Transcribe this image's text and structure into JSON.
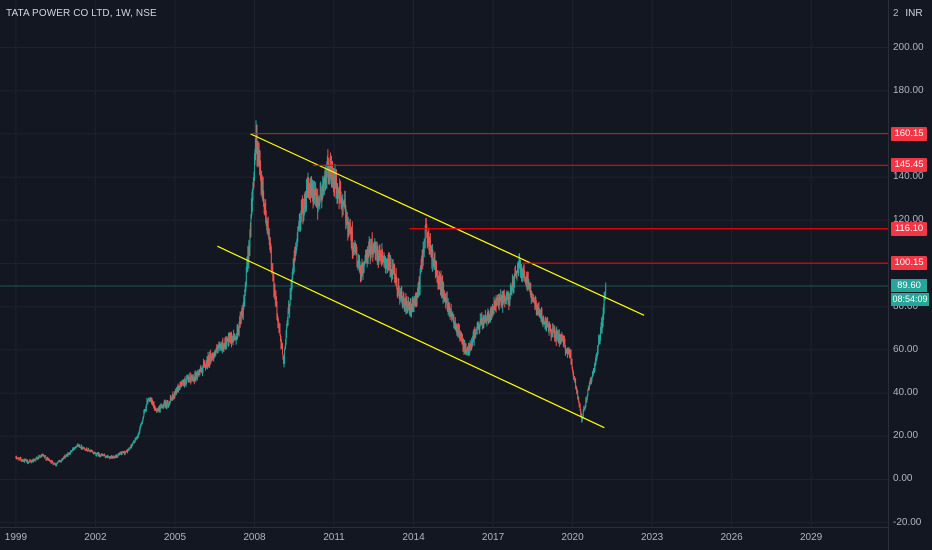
{
  "header": {
    "title": "TATA POWER CO LTD, 1W, NSE",
    "currency": "INR",
    "top_tick_partial": "2"
  },
  "colors": {
    "background": "#131722",
    "up_candle": "#26a69a",
    "down_candle": "#ef5350",
    "level_line": "#ff0000",
    "channel_line": "#ffff00",
    "price_line": "#26a69a"
  },
  "chart_data": {
    "type": "candlestick",
    "title": "TATA POWER CO LTD, 1W, NSE",
    "xlabel": "",
    "ylabel": "",
    "currency": "INR",
    "xlim": [
      1998.4,
      2031.9
    ],
    "ylim": [
      -22,
      222
    ],
    "grid": true,
    "x_ticks": [
      "1999",
      "2002",
      "2005",
      "2008",
      "2011",
      "2014",
      "2017",
      "2020",
      "2023",
      "2026",
      "2029"
    ],
    "y_ticks": [
      "-20.00",
      "0.00",
      "20.00",
      "40.00",
      "60.00",
      "80.00",
      "100.00",
      "120.00",
      "140.00",
      "160.00",
      "180.00",
      "200.00"
    ],
    "price_path": [
      [
        1999.0,
        10
      ],
      [
        1999.5,
        8
      ],
      [
        2000.0,
        11
      ],
      [
        2000.5,
        7
      ],
      [
        2001.0,
        12
      ],
      [
        2001.3,
        16
      ],
      [
        2002.0,
        12
      ],
      [
        2002.6,
        10
      ],
      [
        2003.2,
        13
      ],
      [
        2003.6,
        20
      ],
      [
        2004.0,
        38
      ],
      [
        2004.3,
        32
      ],
      [
        2004.8,
        36
      ],
      [
        2005.2,
        44
      ],
      [
        2005.8,
        48
      ],
      [
        2006.3,
        56
      ],
      [
        2006.8,
        62
      ],
      [
        2007.3,
        66
      ],
      [
        2007.6,
        80
      ],
      [
        2007.9,
        125
      ],
      [
        2008.05,
        160
      ],
      [
        2008.3,
        135
      ],
      [
        2008.6,
        105
      ],
      [
        2008.9,
        72
      ],
      [
        2009.1,
        55
      ],
      [
        2009.4,
        92
      ],
      [
        2009.7,
        120
      ],
      [
        2010.0,
        135
      ],
      [
        2010.4,
        128
      ],
      [
        2010.8,
        145
      ],
      [
        2011.1,
        135
      ],
      [
        2011.4,
        125
      ],
      [
        2011.7,
        110
      ],
      [
        2012.0,
        95
      ],
      [
        2012.4,
        108
      ],
      [
        2012.8,
        104
      ],
      [
        2013.2,
        96
      ],
      [
        2013.6,
        82
      ],
      [
        2013.9,
        78
      ],
      [
        2014.2,
        88
      ],
      [
        2014.45,
        116
      ],
      [
        2014.8,
        98
      ],
      [
        2015.2,
        84
      ],
      [
        2015.6,
        72
      ],
      [
        2016.0,
        58
      ],
      [
        2016.4,
        70
      ],
      [
        2016.8,
        76
      ],
      [
        2017.2,
        82
      ],
      [
        2017.6,
        84
      ],
      [
        2018.0,
        100
      ],
      [
        2018.3,
        92
      ],
      [
        2018.7,
        78
      ],
      [
        2019.1,
        70
      ],
      [
        2019.6,
        64
      ],
      [
        2019.9,
        58
      ],
      [
        2020.2,
        38
      ],
      [
        2020.35,
        28
      ],
      [
        2020.6,
        42
      ],
      [
        2020.9,
        56
      ],
      [
        2021.1,
        72
      ],
      [
        2021.25,
        89.6
      ]
    ],
    "horizontal_levels": [
      {
        "value": 160.15,
        "label": "160.15",
        "x_start": 2007.85
      },
      {
        "value": 145.45,
        "label": "145.45",
        "x_start": 2010.2
      },
      {
        "value": 116.1,
        "label": "116.10",
        "x_start": 2013.85
      },
      {
        "value": 100.15,
        "label": "100.15",
        "x_start": 2018.1
      }
    ],
    "channel_lines": [
      {
        "name": "upper",
        "start": [
          2007.85,
          160
        ],
        "end": [
          2022.7,
          76
        ]
      },
      {
        "name": "lower",
        "start": [
          2006.6,
          108
        ],
        "end": [
          2021.2,
          24
        ]
      }
    ],
    "last_price": {
      "value": 89.6,
      "label": "89.60",
      "countdown": "08:54:09"
    }
  }
}
